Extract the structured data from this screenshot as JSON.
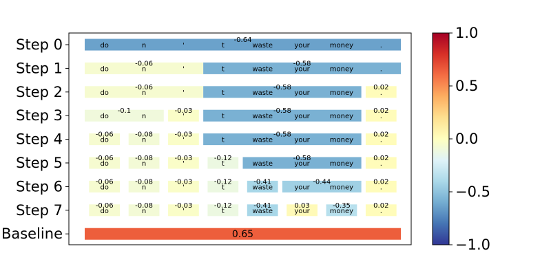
{
  "chart_data": {
    "type": "heatmap",
    "title": "",
    "xlabel": "",
    "ylabel": "",
    "tokens": [
      "do",
      "n",
      "'",
      "t",
      "waste",
      "your",
      "money",
      "."
    ],
    "row_labels": [
      "Step 0",
      "Step 1",
      "Step 2",
      "Step 3",
      "Step 4",
      "Step 5",
      "Step 6",
      "Step 7",
      "Baseline"
    ],
    "rows": [
      {
        "label": "Step 0",
        "segments": [
          {
            "start": 0,
            "end": 8,
            "value": -0.64,
            "label": "-0.64"
          }
        ]
      },
      {
        "label": "Step 1",
        "segments": [
          {
            "start": 0,
            "end": 3,
            "value": -0.06,
            "label": "-0.06"
          },
          {
            "start": 3,
            "end": 8,
            "value": -0.58,
            "label": "-0.58"
          }
        ]
      },
      {
        "label": "Step 2",
        "segments": [
          {
            "start": 0,
            "end": 3,
            "value": -0.06,
            "label": "-0.06"
          },
          {
            "start": 3,
            "end": 7,
            "value": -0.58,
            "label": "-0.58"
          },
          {
            "start": 7,
            "end": 8,
            "value": 0.02,
            "label": "0.02"
          }
        ]
      },
      {
        "label": "Step 3",
        "segments": [
          {
            "start": 0,
            "end": 2,
            "value": -0.1,
            "label": "-0.1"
          },
          {
            "start": 2,
            "end": 3,
            "value": -0.03,
            "label": "-0.03"
          },
          {
            "start": 3,
            "end": 7,
            "value": -0.58,
            "label": "-0.58"
          },
          {
            "start": 7,
            "end": 8,
            "value": 0.02,
            "label": "0.02"
          }
        ]
      },
      {
        "label": "Step 4",
        "segments": [
          {
            "start": 0,
            "end": 1,
            "value": -0.06,
            "label": "-0.06"
          },
          {
            "start": 1,
            "end": 2,
            "value": -0.08,
            "label": "-0.08"
          },
          {
            "start": 2,
            "end": 3,
            "value": -0.03,
            "label": "-0.03"
          },
          {
            "start": 3,
            "end": 7,
            "value": -0.58,
            "label": "-0.58"
          },
          {
            "start": 7,
            "end": 8,
            "value": 0.02,
            "label": "0.02"
          }
        ]
      },
      {
        "label": "Step 5",
        "segments": [
          {
            "start": 0,
            "end": 1,
            "value": -0.06,
            "label": "-0.06"
          },
          {
            "start": 1,
            "end": 2,
            "value": -0.08,
            "label": "-0.08"
          },
          {
            "start": 2,
            "end": 3,
            "value": -0.03,
            "label": "-0.03"
          },
          {
            "start": 3,
            "end": 4,
            "value": -0.12,
            "label": "-0.12"
          },
          {
            "start": 4,
            "end": 7,
            "value": -0.58,
            "label": "-0.58"
          },
          {
            "start": 7,
            "end": 8,
            "value": 0.02,
            "label": "0.02"
          }
        ]
      },
      {
        "label": "Step 6",
        "segments": [
          {
            "start": 0,
            "end": 1,
            "value": -0.06,
            "label": "-0.06"
          },
          {
            "start": 1,
            "end": 2,
            "value": -0.08,
            "label": "-0.08"
          },
          {
            "start": 2,
            "end": 3,
            "value": -0.03,
            "label": "-0.03"
          },
          {
            "start": 3,
            "end": 4,
            "value": -0.12,
            "label": "-0.12"
          },
          {
            "start": 4,
            "end": 5,
            "value": -0.41,
            "label": "-0.41"
          },
          {
            "start": 5,
            "end": 7,
            "value": -0.44,
            "label": "-0.44"
          },
          {
            "start": 7,
            "end": 8,
            "value": 0.02,
            "label": "0.02"
          }
        ]
      },
      {
        "label": "Step 7",
        "segments": [
          {
            "start": 0,
            "end": 1,
            "value": -0.06,
            "label": "-0.06"
          },
          {
            "start": 1,
            "end": 2,
            "value": -0.08,
            "label": "-0.08"
          },
          {
            "start": 2,
            "end": 3,
            "value": -0.03,
            "label": "-0.03"
          },
          {
            "start": 3,
            "end": 4,
            "value": -0.12,
            "label": "-0.12"
          },
          {
            "start": 4,
            "end": 5,
            "value": -0.41,
            "label": "-0.41"
          },
          {
            "start": 5,
            "end": 6,
            "value": 0.03,
            "label": "0.03"
          },
          {
            "start": 6,
            "end": 7,
            "value": -0.35,
            "label": "-0.35"
          },
          {
            "start": 7,
            "end": 8,
            "value": 0.02,
            "label": "0.02"
          }
        ]
      },
      {
        "label": "Baseline",
        "segments": [
          {
            "start": 0,
            "end": 8,
            "value": 0.65,
            "label": "0.65"
          }
        ]
      }
    ],
    "colorbar": {
      "cmap": "RdYlBu_r",
      "range": [
        -1.0,
        1.0
      ],
      "ticks": [
        1.0,
        0.5,
        0.0,
        -0.5,
        -1.0
      ],
      "tick_labels": [
        "1.0",
        "0.5",
        "0.0",
        "−0.5",
        "−1.0"
      ]
    },
    "grid": false,
    "legend": "none"
  }
}
